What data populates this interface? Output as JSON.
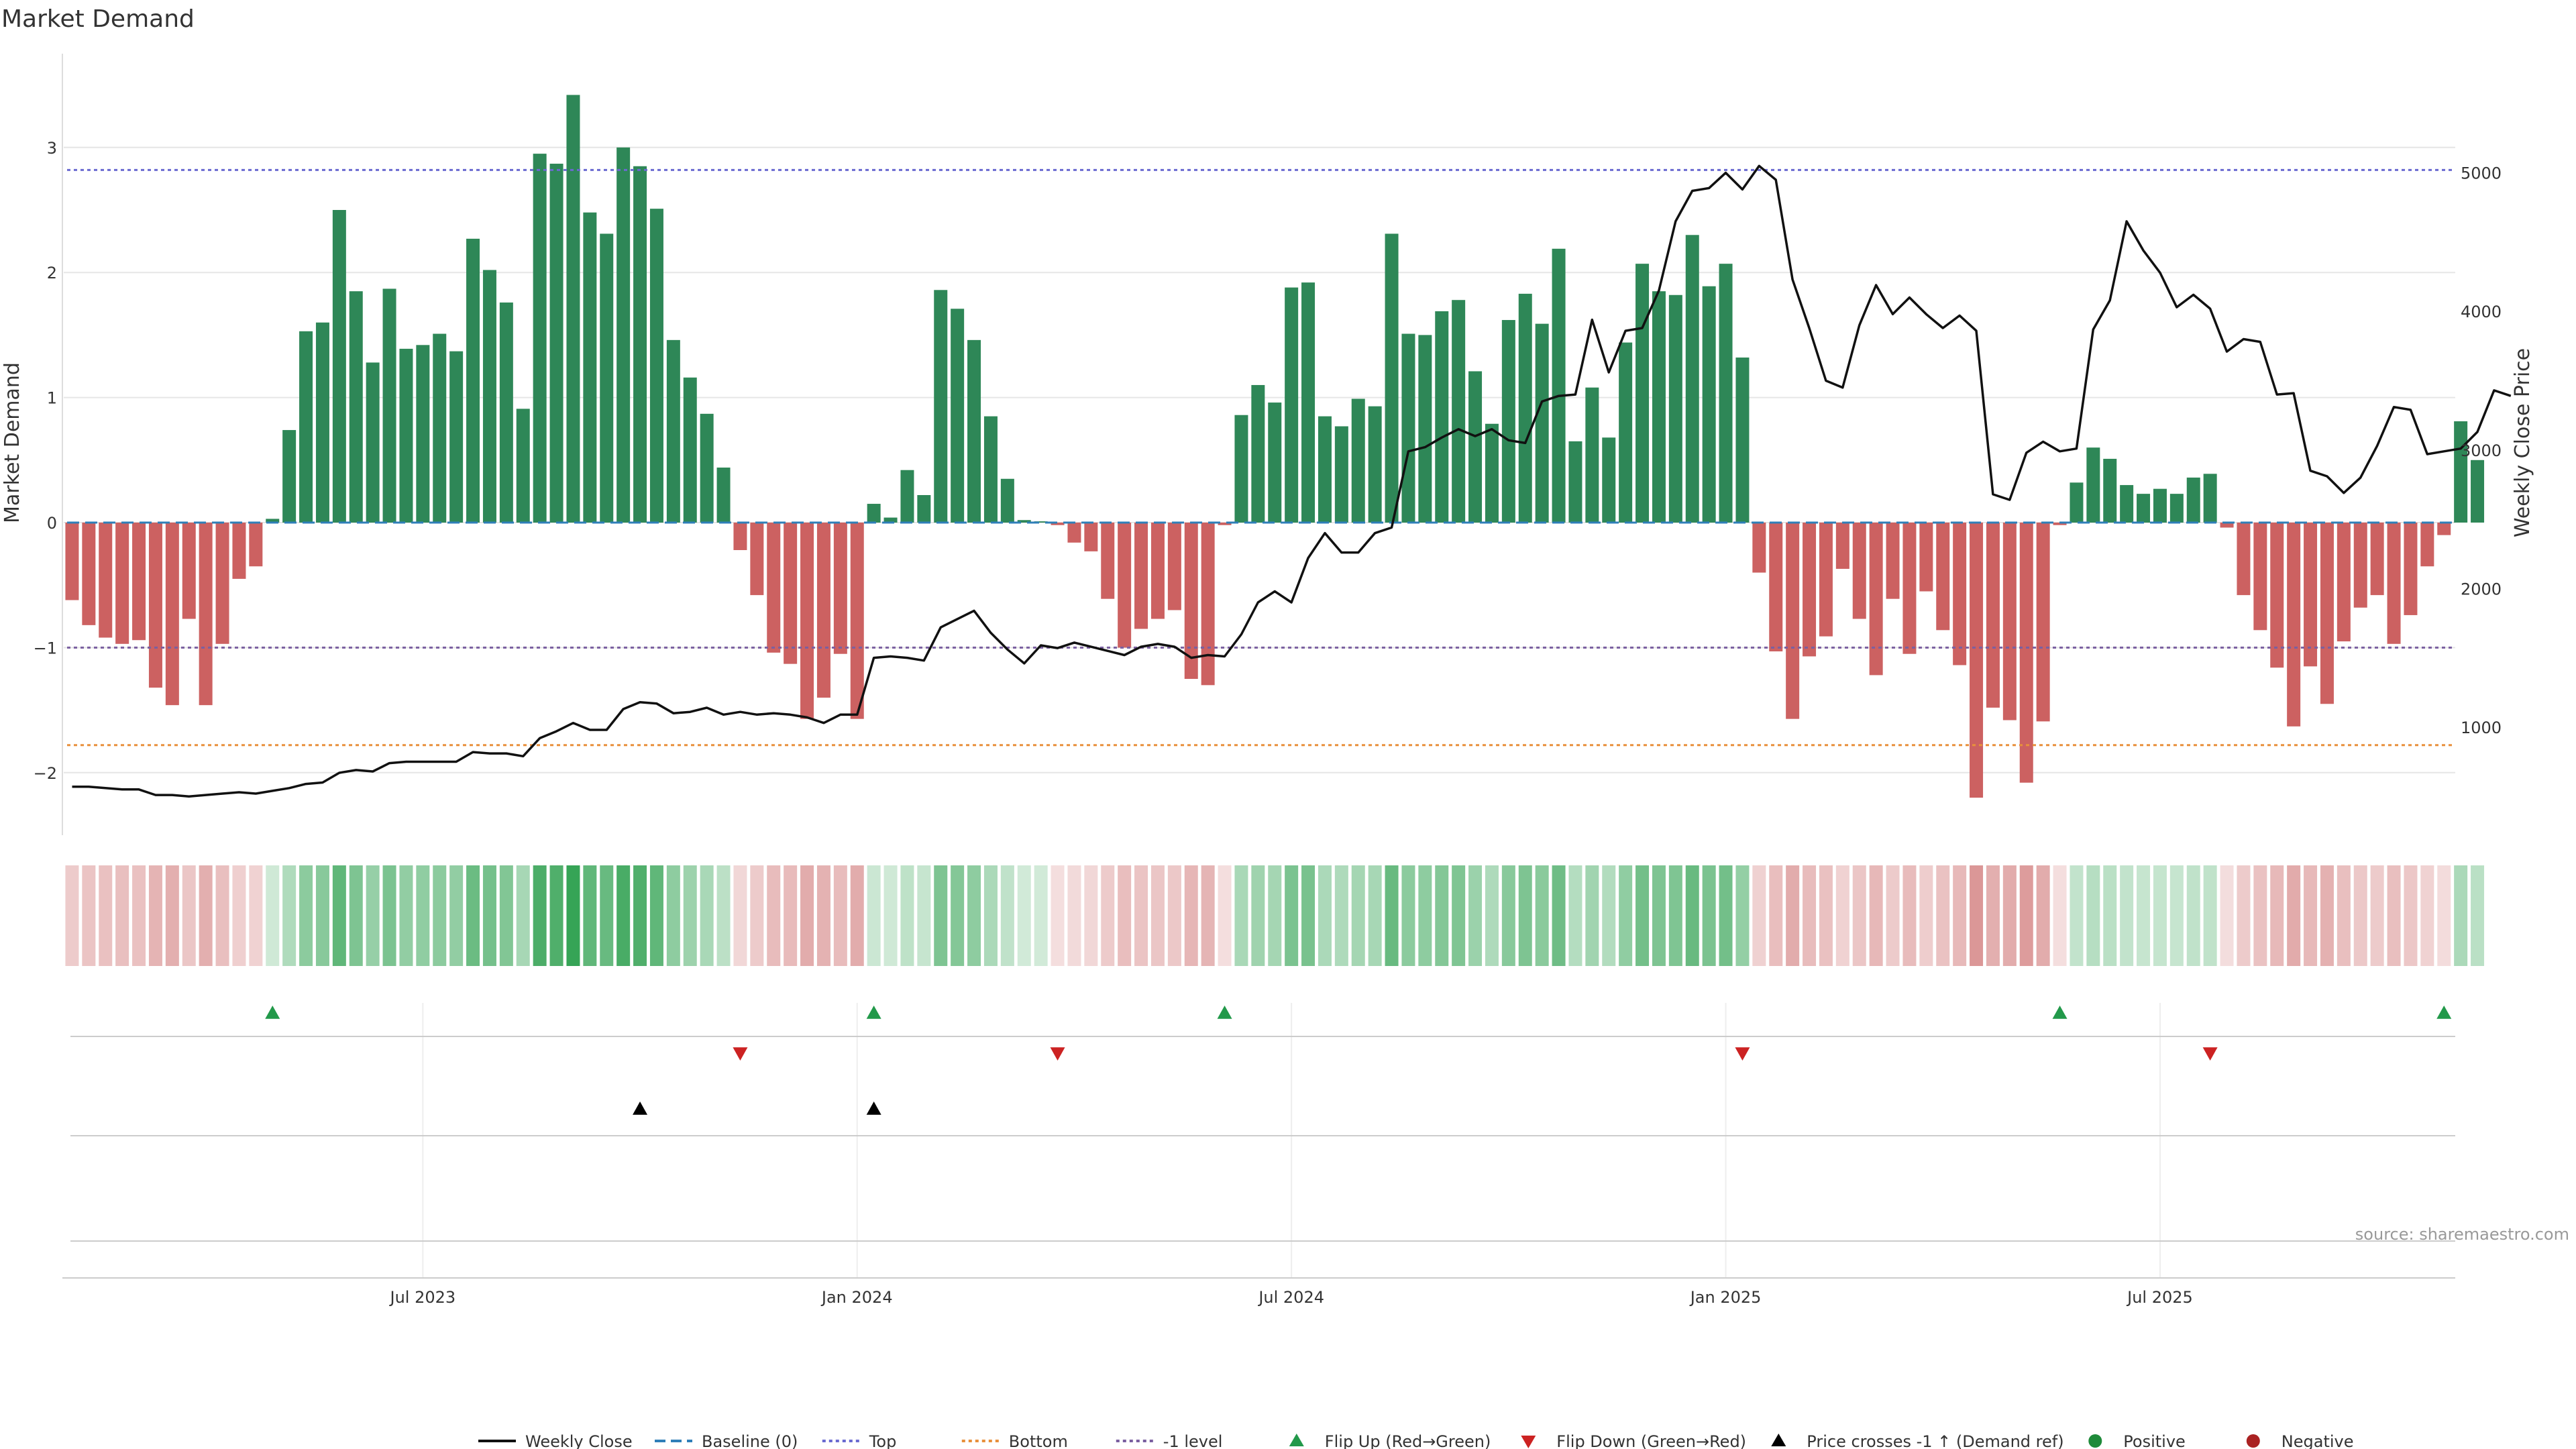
{
  "colors": {
    "positive_bar": "#2e8757",
    "negative_bar": "#cc6161",
    "price_line": "#111111",
    "baseline": "#2f7fb8",
    "top_line": "#6a6ad0",
    "bottom_line": "#e8903c",
    "minus1_line": "#7a5fa0",
    "flip_up": "#22994a",
    "flip_down": "#cc2222",
    "cross_marker": "#000000",
    "grid": "#e6e6e6",
    "source_text": "#999999"
  },
  "chart_data": {
    "type": "bar+line",
    "title": "Market Demand",
    "ylabel_left": "Market Demand",
    "ylabel_right": "Weekly Close Price",
    "source": "source: sharemaestro.com",
    "ylim_left": [
      -2.5,
      3.75
    ],
    "yticks_left": [
      3,
      2,
      1,
      0,
      -1,
      -2
    ],
    "yticks_left_labels": [
      "3",
      "2",
      "1",
      "0",
      "−1",
      "−2"
    ],
    "ylim_right": [
      220,
      5860
    ],
    "yticks_right": [
      5000,
      4000,
      3000,
      2000,
      1000
    ],
    "xticks": [
      {
        "index": 21,
        "label": "Jul 2023"
      },
      {
        "index": 47,
        "label": "Jan 2024"
      },
      {
        "index": 73,
        "label": "Jul 2024"
      },
      {
        "index": 99,
        "label": "Jan 2025"
      },
      {
        "index": 125,
        "label": "Jul 2025"
      }
    ],
    "reference_lines": {
      "top": 2.82,
      "bottom": -1.78,
      "minus1_level": -1.0,
      "baseline": 0
    },
    "demand": [
      -0.62,
      -0.82,
      -0.92,
      -0.97,
      -0.94,
      -1.32,
      -1.46,
      -0.77,
      -1.46,
      -0.97,
      -0.45,
      -0.35,
      0.03,
      0.74,
      1.53,
      1.6,
      2.5,
      1.85,
      1.28,
      1.87,
      1.39,
      1.42,
      1.51,
      1.37,
      2.27,
      2.02,
      1.76,
      0.91,
      2.95,
      2.87,
      3.42,
      2.48,
      2.31,
      3.0,
      2.85,
      2.51,
      1.46,
      1.16,
      0.87,
      0.44,
      -0.22,
      -0.58,
      -1.04,
      -1.13,
      -1.57,
      -1.4,
      -1.05,
      -1.57,
      0.15,
      0.04,
      0.42,
      0.22,
      1.86,
      1.71,
      1.46,
      0.85,
      0.35,
      0.02,
      0.01,
      -0.02,
      -0.16,
      -0.23,
      -0.61,
      -1.0,
      -0.85,
      -0.77,
      -0.7,
      -1.25,
      -1.3,
      -0.02,
      0.86,
      1.1,
      0.96,
      1.88,
      1.92,
      0.85,
      0.77,
      0.99,
      0.93,
      2.31,
      1.51,
      1.5,
      1.69,
      1.78,
      1.21,
      0.79,
      1.62,
      1.83,
      1.59,
      2.19,
      0.65,
      1.08,
      0.68,
      1.44,
      2.07,
      1.85,
      1.82,
      2.3,
      1.89,
      2.07,
      1.32,
      -0.4,
      -1.03,
      -1.57,
      -1.07,
      -0.91,
      -0.37,
      -0.77,
      -1.22,
      -0.61,
      -1.05,
      -0.55,
      -0.86,
      -1.14,
      -2.2,
      -1.48,
      -1.58,
      -2.08,
      -1.59,
      -0.02,
      0.32,
      0.6,
      0.51,
      0.3,
      0.23,
      0.27,
      0.23,
      0.36,
      0.39,
      -0.04,
      -0.58,
      -0.86,
      -1.16,
      -1.63,
      -1.15,
      -1.45,
      -0.95,
      -0.68,
      -0.58,
      -0.97,
      -0.74,
      -0.35,
      -0.1,
      0.81,
      0.5
    ],
    "weekly_close": [
      570,
      570,
      560,
      550,
      550,
      510,
      510,
      500,
      510,
      520,
      530,
      520,
      540,
      560,
      590,
      600,
      670,
      690,
      680,
      740,
      750,
      750,
      750,
      750,
      820,
      810,
      810,
      790,
      920,
      970,
      1030,
      980,
      980,
      1130,
      1180,
      1170,
      1100,
      1110,
      1140,
      1090,
      1110,
      1090,
      1100,
      1090,
      1070,
      1030,
      1090,
      1090,
      1500,
      1510,
      1500,
      1480,
      1720,
      1780,
      1840,
      1680,
      1560,
      1460,
      1590,
      1570,
      1610,
      1580,
      1550,
      1520,
      1580,
      1600,
      1580,
      1500,
      1520,
      1510,
      1670,
      1900,
      1980,
      1900,
      2220,
      2400,
      2260,
      2260,
      2400,
      2440,
      2990,
      3020,
      3090,
      3150,
      3100,
      3150,
      3070,
      3050,
      3350,
      3390,
      3400,
      3940,
      3560,
      3860,
      3880,
      4150,
      4650,
      4870,
      4890,
      5000,
      4880,
      5050,
      4950,
      4230,
      3880,
      3500,
      3450,
      3900,
      4190,
      3980,
      4100,
      3980,
      3880,
      3970,
      3860,
      2680,
      2640,
      2980,
      3060,
      2990,
      3010,
      3870,
      4080,
      4650,
      4440,
      4280,
      4030,
      4120,
      4020,
      3710,
      3800,
      3780,
      3400,
      3410,
      2850,
      2810,
      2690,
      2800,
      3030,
      3310,
      3290,
      2970,
      2990,
      3010,
      3130,
      3430,
      3390
    ],
    "flip_up_indices": [
      12,
      48,
      69,
      119,
      142
    ],
    "flip_down_indices": [
      40,
      59,
      100,
      128
    ],
    "price_cross_indices": [
      34,
      48
    ]
  },
  "legend": [
    {
      "label": "Weekly Close",
      "icon": "solid-line-icon"
    },
    {
      "label": "Baseline (0)",
      "icon": "dashed-line-icon"
    },
    {
      "label": "Top",
      "icon": "dotted-line-icon"
    },
    {
      "label": "Bottom",
      "icon": "dotted-line-icon"
    },
    {
      "label": "-1 level",
      "icon": "dotted-line-icon"
    },
    {
      "label": "Flip Up (Red→Green)",
      "icon": "triangle-up-icon"
    },
    {
      "label": "Flip Down (Green→Red)",
      "icon": "triangle-down-icon"
    },
    {
      "label": "Price crosses -1 ↑ (Demand ref)",
      "icon": "triangle-up-icon"
    },
    {
      "label": "Positive",
      "icon": "circle-icon"
    },
    {
      "label": "Negative",
      "icon": "circle-icon"
    }
  ]
}
